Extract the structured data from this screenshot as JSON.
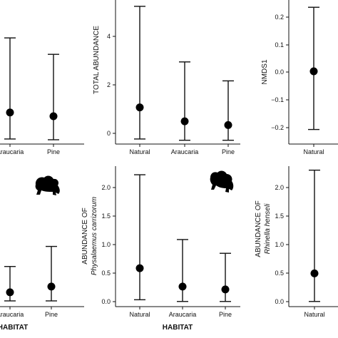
{
  "colors": {
    "ink": "#111111",
    "point": "#000000"
  },
  "icons": [
    "frog-icon"
  ],
  "chart_data": [
    {
      "id": "p1",
      "type": "scatter",
      "error_bars": true,
      "categories": [
        "Araucaria",
        "Pine"
      ],
      "points": [
        {
          "x": "Araucaria",
          "y": 1.15,
          "lo": 0.1,
          "hi": 4.1
        },
        {
          "x": "Pine",
          "y": 1.0,
          "lo": 0.07,
          "hi": 3.45
        }
      ],
      "ylim": [
        -0.1,
        5.6
      ],
      "yticks": [],
      "ylabel": "",
      "xlabel": ""
    },
    {
      "id": "p2",
      "type": "scatter",
      "error_bars": true,
      "categories": [
        "Natural",
        "Araucaria",
        "Pine"
      ],
      "points": [
        {
          "x": "Natural",
          "y": 1.35,
          "lo": 0.1,
          "hi": 5.35
        },
        {
          "x": "Araucaria",
          "y": 0.8,
          "lo": 0.05,
          "hi": 3.15
        },
        {
          "x": "Pine",
          "y": 0.65,
          "lo": 0.05,
          "hi": 2.4
        }
      ],
      "ylim": [
        -0.1,
        5.6
      ],
      "yticks": [
        "0",
        "2",
        "4"
      ],
      "ylabel": "TOTAL ABUNDANCE",
      "xlabel": ""
    },
    {
      "id": "p3",
      "type": "scatter",
      "error_bars": true,
      "categories": [
        "Natural"
      ],
      "points": [
        {
          "x": "Natural",
          "y": 0.025,
          "lo": -0.175,
          "hi": 0.245
        }
      ],
      "ylim": [
        -0.225,
        0.27
      ],
      "yticks": [
        "−0.2",
        "−0.1",
        "0.0",
        "0.1",
        "0.2"
      ],
      "ylabel": "NMDS1",
      "xlabel": ""
    },
    {
      "id": "p4",
      "type": "scatter",
      "error_bars": true,
      "categories": [
        "Araucaria",
        "Pine"
      ],
      "points": [
        {
          "x": "Araucaria",
          "y": 0.2,
          "lo": 0.05,
          "hi": 0.65
        },
        {
          "x": "Pine",
          "y": 0.3,
          "lo": 0.05,
          "hi": 1.0
        }
      ],
      "ylim": [
        -0.05,
        2.4
      ],
      "yticks": [],
      "ylabel": "",
      "xlabel": "HABITAT"
    },
    {
      "id": "p5",
      "type": "scatter",
      "error_bars": true,
      "categories": [
        "Natural",
        "Araucaria",
        "Pine"
      ],
      "points": [
        {
          "x": "Natural",
          "y": 0.62,
          "lo": 0.07,
          "hi": 2.25
        },
        {
          "x": "Araucaria",
          "y": 0.3,
          "lo": 0.04,
          "hi": 1.12
        },
        {
          "x": "Pine",
          "y": 0.25,
          "lo": 0.04,
          "hi": 0.88
        }
      ],
      "ylim": [
        -0.05,
        2.4
      ],
      "yticks": [
        "0.0",
        "0.5",
        "1.0",
        "1.5",
        "2.0"
      ],
      "ylabel_line1": "ABUNDANCE OF",
      "ylabel_line2": "Physalaemus carrizorum",
      "xlabel": "HABITAT"
    },
    {
      "id": "p6",
      "type": "scatter",
      "error_bars": true,
      "categories": [
        "Natural"
      ],
      "points": [
        {
          "x": "Natural",
          "y": 0.53,
          "lo": 0.04,
          "hi": 2.33
        }
      ],
      "ylim": [
        -0.05,
        2.4
      ],
      "yticks": [
        "0.0",
        "0.5",
        "1.0",
        "1.5",
        "2.0"
      ],
      "ylabel_line1": "ABUNDANCE OF",
      "ylabel_line2": "Rhinella henseli",
      "xlabel": ""
    }
  ]
}
